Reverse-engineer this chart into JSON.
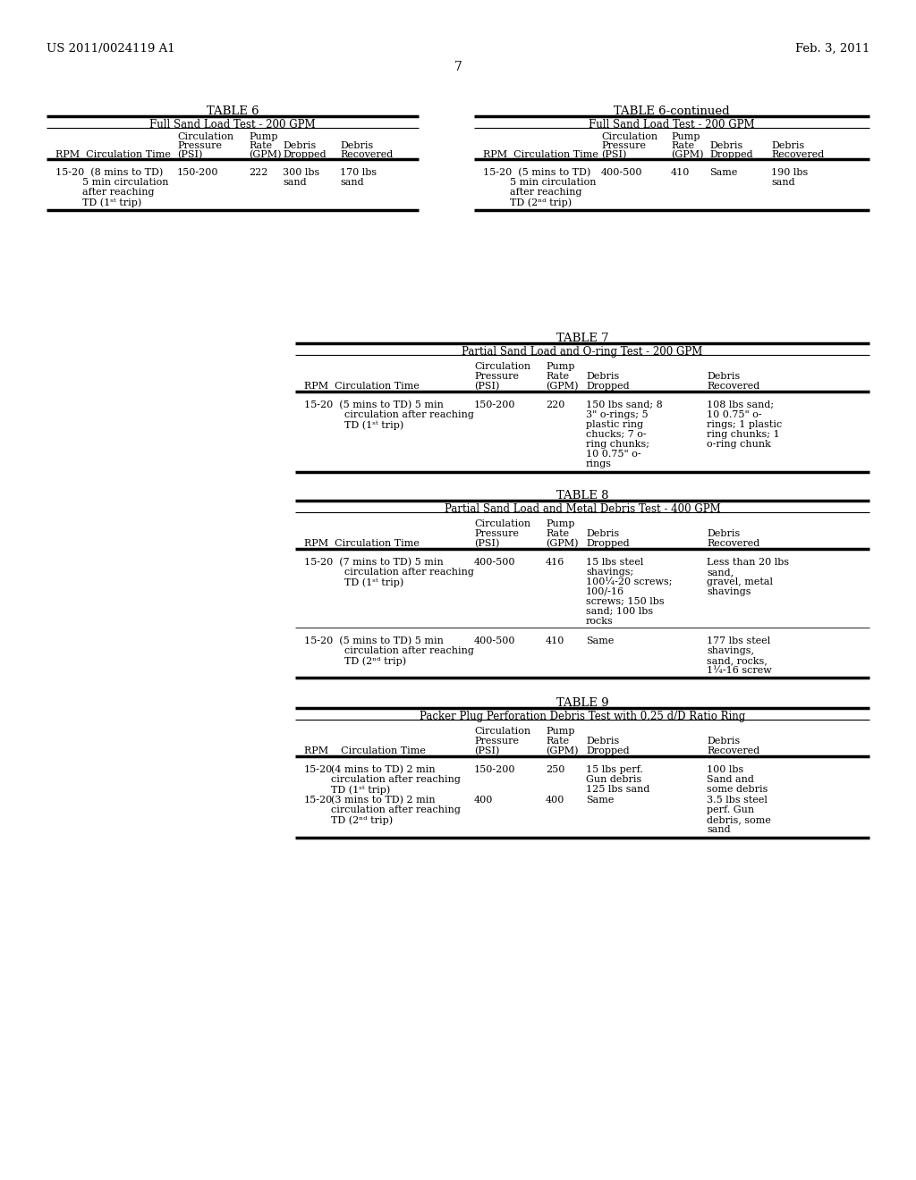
{
  "bg_color": "#ffffff",
  "text_color": "#000000",
  "header_left": "US 2011/0024119 A1",
  "header_right": "Feb. 3, 2011",
  "page_num": "7"
}
